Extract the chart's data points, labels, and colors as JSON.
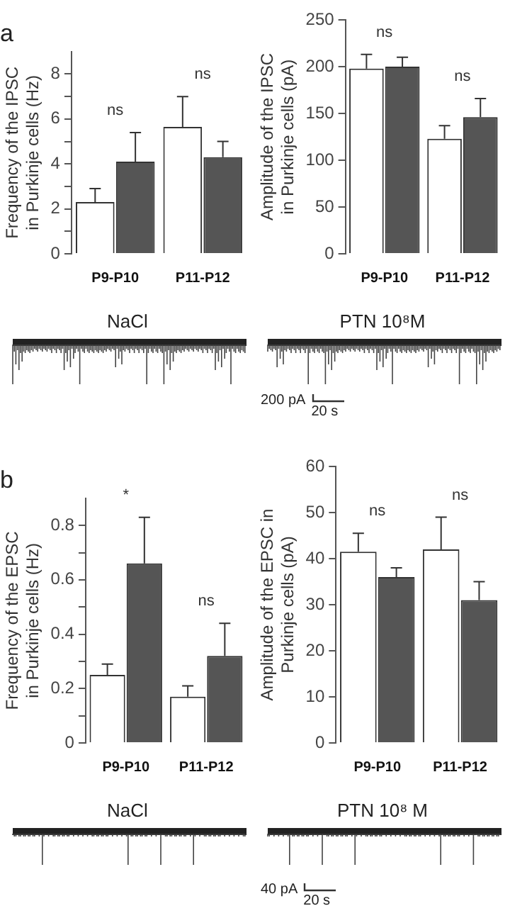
{
  "chart_data": [
    {
      "type": "bar",
      "title": "a",
      "ylabel": "Frequency of the IPSC\nin Purkinje cells (Hz)",
      "categories": [
        "P9-P10",
        "P11-P12"
      ],
      "series": [
        {
          "color": "#ffffff",
          "values": [
            2.3,
            5.65
          ],
          "errors": [
            [
              2.3,
              2.9
            ],
            [
              5.65,
              7.0
            ]
          ]
        },
        {
          "color": "#555555",
          "values": [
            4.1,
            4.3
          ],
          "errors": [
            [
              4.1,
              5.4
            ],
            [
              4.3,
              5.0
            ]
          ]
        }
      ],
      "ylim": [
        0,
        9
      ],
      "yticks": [
        0,
        {
          "value": 1,
          "label": null
        },
        2,
        {
          "value": 3,
          "label": null
        },
        4,
        {
          "value": 5,
          "label": null
        },
        6,
        {
          "value": 7,
          "label": null
        },
        8
      ],
      "annotations": [
        "ns",
        "ns",
        "NaCl"
      ]
    },
    {
      "type": "bar",
      "ylabel": "Amplitude of the IPSC\nin Purkinje cells (pA)",
      "categories": [
        "P9-P10",
        "P11-P12"
      ],
      "series": [
        {
          "color": "#ffffff",
          "values": [
            198,
            123
          ],
          "errors": [
            [
              198,
              213
            ],
            [
              123,
              137
            ]
          ]
        },
        {
          "color": "#555555",
          "values": [
            200,
            146
          ],
          "errors": [
            [
              200,
              210
            ],
            [
              146,
              166
            ]
          ]
        }
      ],
      "ylim": [
        0,
        250
      ],
      "yticks": [
        0,
        50,
        100,
        150,
        200,
        250
      ],
      "annotations": [
        "ns",
        "ns",
        "PTN 10⁸M",
        "200 pA",
        "20 s"
      ]
    },
    {
      "type": "bar",
      "title": "b",
      "ylabel": "Frequency of the EPSC\nin Purkinje cells (Hz)",
      "categories": [
        "P9-P10",
        "P11-P12"
      ],
      "series": [
        {
          "color": "#ffffff",
          "values": [
            0.25,
            0.17
          ],
          "errors": [
            [
              0.25,
              0.29
            ],
            [
              0.17,
              0.21
            ]
          ]
        },
        {
          "color": "#555555",
          "values": [
            0.66,
            0.32
          ],
          "errors": [
            [
              0.66,
              0.83
            ],
            [
              0.32,
              0.44
            ]
          ]
        }
      ],
      "ylim": [
        0,
        0.9
      ],
      "yticks": [
        0,
        {
          "value": 0.1,
          "label": null
        },
        0.2,
        {
          "value": 0.3,
          "label": null
        },
        0.4,
        {
          "value": 0.5,
          "label": null
        },
        0.6,
        {
          "value": 0.7,
          "label": null
        },
        0.8
      ],
      "annotations": [
        "*",
        "ns",
        "NaCl"
      ]
    },
    {
      "type": "bar",
      "ylabel": "Amplitude of the EPSC in\nPurkinje cells (pA)",
      "categories": [
        "P9-P10",
        "P11-P12"
      ],
      "series": [
        {
          "color": "#ffffff",
          "values": [
            41.5,
            42
          ],
          "errors": [
            [
              41.5,
              45.5
            ],
            [
              42,
              49
            ]
          ]
        },
        {
          "color": "#555555",
          "values": [
            36,
            31
          ],
          "errors": [
            [
              36,
              38
            ],
            [
              31,
              35
            ]
          ]
        }
      ],
      "ylim": [
        0,
        60
      ],
      "yticks": [
        0,
        10,
        20,
        30,
        40,
        50,
        60
      ],
      "annotations": [
        "ns",
        "ns",
        "PTN 10⁸ M",
        "40 pA",
        "20 s"
      ]
    }
  ]
}
